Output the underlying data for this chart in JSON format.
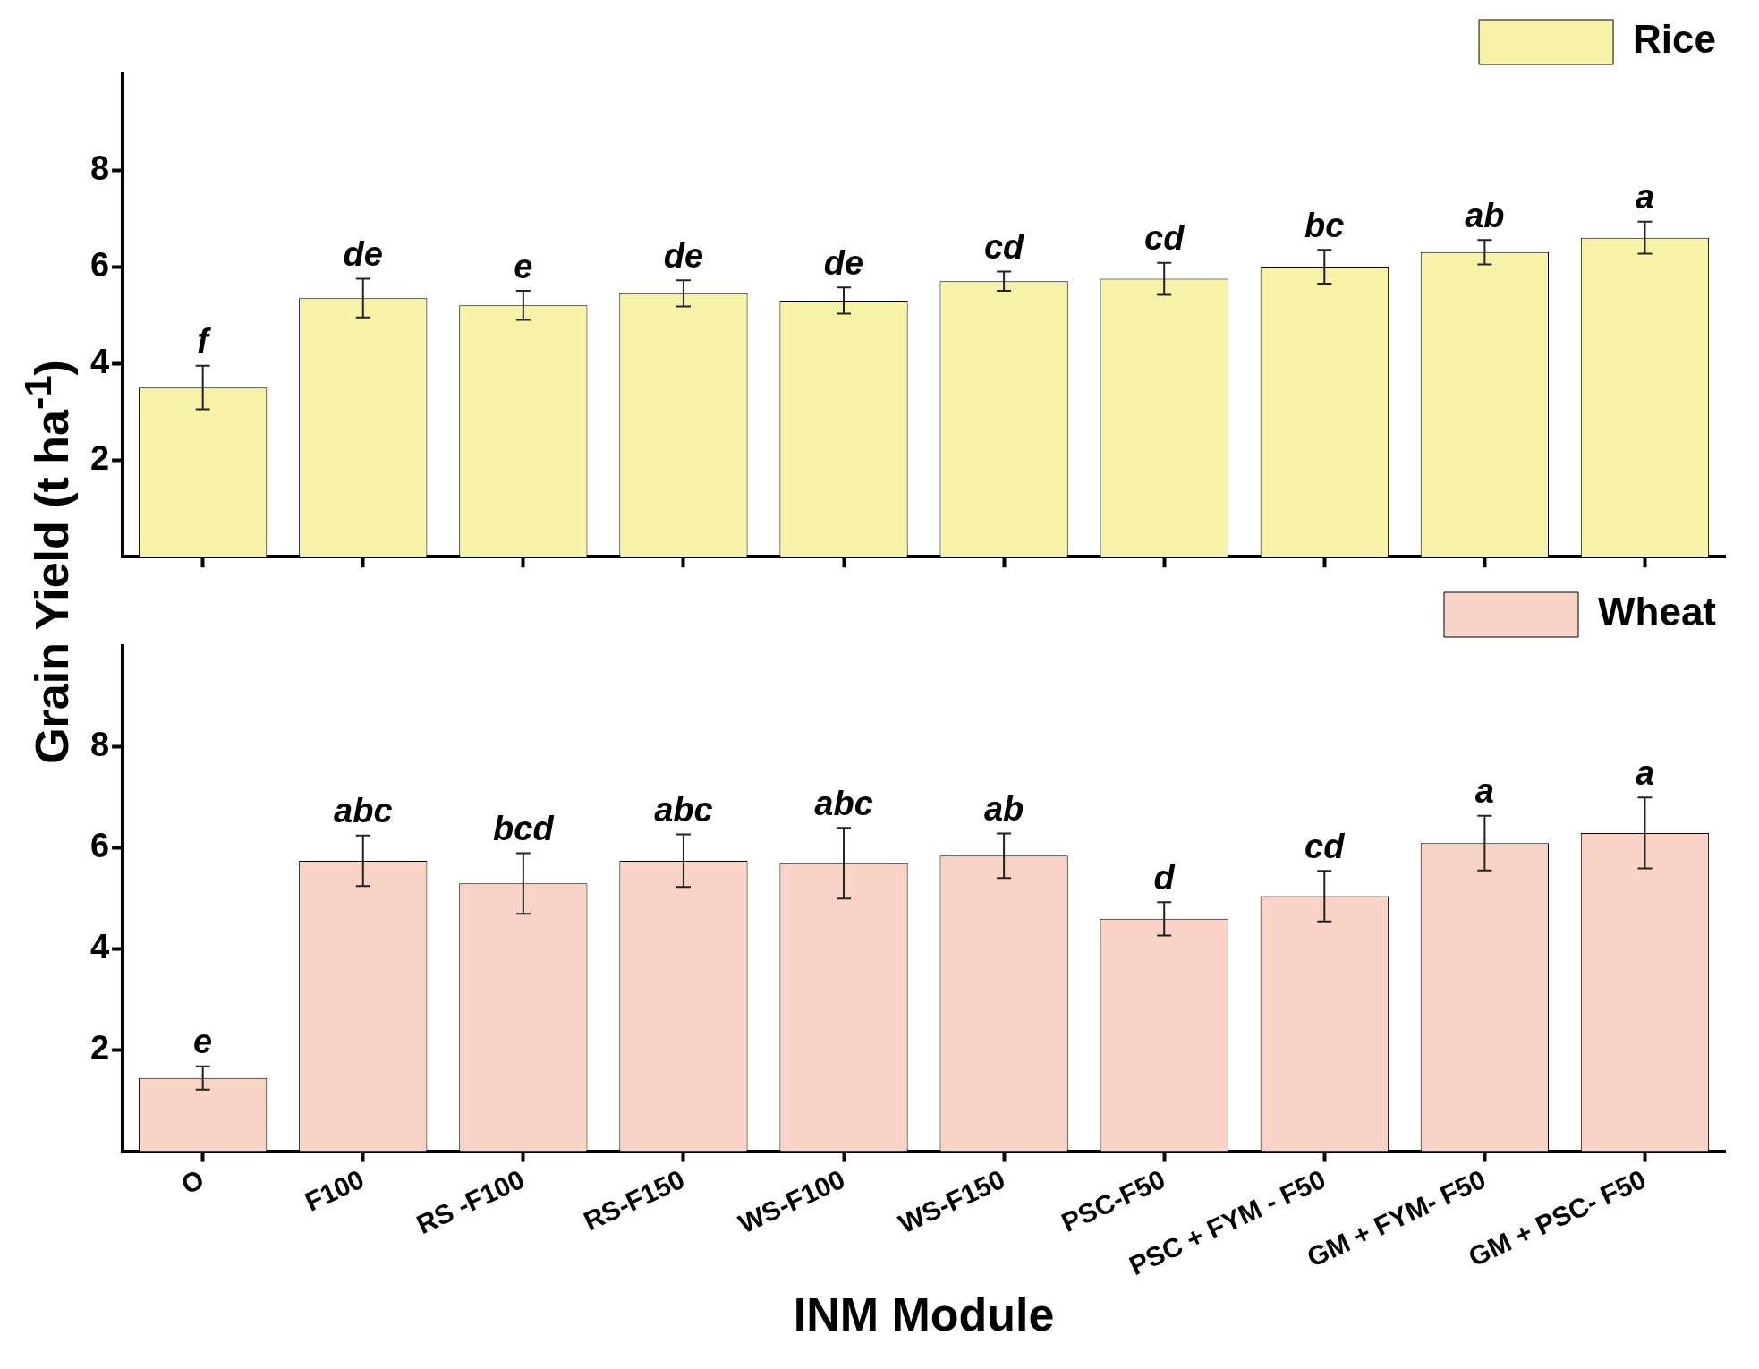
{
  "chart_data": [
    {
      "type": "bar",
      "ylabel": "Grain Yield (t ha$^{-1}$)",
      "categories": [
        "O",
        "F100",
        "RS -F100",
        "RS-F150",
        "WS-F100",
        "WS-F150",
        "PSC-F50",
        "PSC + FYM - F50",
        "GM + FYM- F50",
        "GM + PSC- F50"
      ],
      "series": [
        {
          "name": "Rice",
          "color": "#f7f3a8",
          "values": [
            3.5,
            5.35,
            5.2,
            5.45,
            5.3,
            5.7,
            5.75,
            6.0,
            6.3,
            6.6
          ],
          "errors": [
            0.45,
            0.4,
            0.3,
            0.27,
            0.27,
            0.2,
            0.33,
            0.35,
            0.25,
            0.33
          ]
        }
      ],
      "ylim": [
        0,
        10
      ],
      "yticks": [
        2,
        4,
        6,
        8
      ],
      "tick_labels": "y",
      "legend": "top right",
      "grid": false,
      "annotations": [
        {
          "text": "f",
          "x": "O",
          "y": 3.95
        },
        {
          "text": "de",
          "x": "F100",
          "y": 5.75
        },
        {
          "text": "e",
          "x": "RS -F100",
          "y": 5.5
        },
        {
          "text": "de",
          "x": "RS-F150",
          "y": 5.72
        },
        {
          "text": "de",
          "x": "WS-F100",
          "y": 5.57
        },
        {
          "text": "cd",
          "x": "WS-F150",
          "y": 5.9
        },
        {
          "text": "cd",
          "x": "PSC-F50",
          "y": 6.08
        },
        {
          "text": "bc",
          "x": "PSC + FYM - F50",
          "y": 6.35
        },
        {
          "text": "ab",
          "x": "GM + FYM- F50",
          "y": 6.55
        },
        {
          "text": "a",
          "x": "GM + PSC- F50",
          "y": 6.93
        }
      ]
    },
    {
      "type": "bar",
      "xlabel": "INM Module",
      "categories": [
        "O",
        "F100",
        "RS -F100",
        "RS-F150",
        "WS-F100",
        "WS-F150",
        "PSC-F50",
        "PSC + FYM - F50",
        "GM + FYM- F50",
        "GM + PSC- F50"
      ],
      "series": [
        {
          "name": "Wheat",
          "color": "#f9d3c6",
          "values": [
            1.45,
            5.75,
            5.3,
            5.75,
            5.7,
            5.85,
            4.6,
            5.05,
            6.1,
            6.3
          ],
          "errors": [
            0.23,
            0.5,
            0.6,
            0.52,
            0.7,
            0.44,
            0.33,
            0.5,
            0.54,
            0.7
          ]
        }
      ],
      "ylim": [
        0,
        10
      ],
      "yticks": [
        2,
        4,
        6,
        8
      ],
      "legend": "top right",
      "grid": false,
      "annotations": [
        {
          "text": "e",
          "x": "O",
          "y": 1.68
        },
        {
          "text": "abc",
          "x": "F100",
          "y": 6.25
        },
        {
          "text": "bcd",
          "x": "RS -F100",
          "y": 5.9
        },
        {
          "text": "abc",
          "x": "RS-F150",
          "y": 6.27
        },
        {
          "text": "abc",
          "x": "WS-F100",
          "y": 6.4
        },
        {
          "text": "ab",
          "x": "WS-F150",
          "y": 6.29
        },
        {
          "text": "d",
          "x": "PSC-F50",
          "y": 4.93
        },
        {
          "text": "cd",
          "x": "PSC + FYM - F50",
          "y": 5.55
        },
        {
          "text": "a",
          "x": "GM + FYM- F50",
          "y": 6.64
        },
        {
          "text": "a",
          "x": "GM + PSC- F50",
          "y": 7.0
        }
      ]
    }
  ]
}
